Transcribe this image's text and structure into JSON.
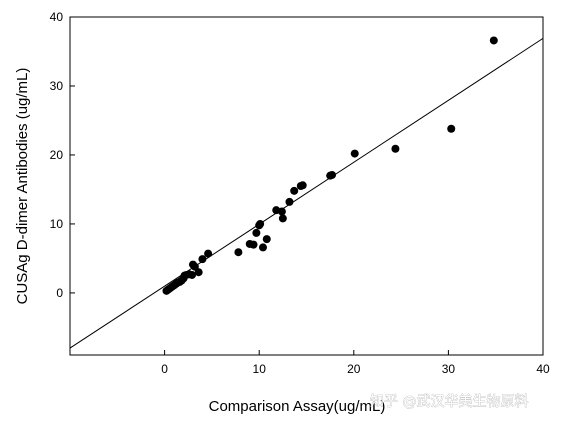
{
  "chart_data": {
    "type": "scatter",
    "title": "",
    "xlabel": "Comparison Assay(ug/mL)",
    "ylabel": "CUSAg D-dimer Antibodies (ug/mL)",
    "xlim": [
      -10,
      40
    ],
    "ylim": [
      -9,
      40
    ],
    "x_ticks": [
      0,
      10,
      20,
      30,
      40
    ],
    "y_ticks": [
      0,
      10,
      20,
      30,
      40
    ],
    "grid": false,
    "legend": "none",
    "marker_color": "#000000",
    "series": [
      {
        "points": [
          [
            0.2,
            0.3
          ],
          [
            0.4,
            0.5
          ],
          [
            0.6,
            0.7
          ],
          [
            0.8,
            0.9
          ],
          [
            1.0,
            1.1
          ],
          [
            1.2,
            1.3
          ],
          [
            1.4,
            1.5
          ],
          [
            1.6,
            1.6
          ],
          [
            1.8,
            1.8
          ],
          [
            2.0,
            2.1
          ],
          [
            2.1,
            2.5
          ],
          [
            2.3,
            2.6
          ],
          [
            2.6,
            2.7
          ],
          [
            2.9,
            2.6
          ],
          [
            3.0,
            4.1
          ],
          [
            3.2,
            3.8
          ],
          [
            3.6,
            3.0
          ],
          [
            4.0,
            4.9
          ],
          [
            4.6,
            5.7
          ],
          [
            7.8,
            5.9
          ],
          [
            9.0,
            7.1
          ],
          [
            9.4,
            7.0
          ],
          [
            9.7,
            8.7
          ],
          [
            10.0,
            9.8
          ],
          [
            10.1,
            10.0
          ],
          [
            10.4,
            6.6
          ],
          [
            10.8,
            7.8
          ],
          [
            11.8,
            12.0
          ],
          [
            12.4,
            11.8
          ],
          [
            12.5,
            10.8
          ],
          [
            13.2,
            13.2
          ],
          [
            13.7,
            14.8
          ],
          [
            14.4,
            15.5
          ],
          [
            14.6,
            15.6
          ],
          [
            17.5,
            17.0
          ],
          [
            17.7,
            17.1
          ],
          [
            20.1,
            20.2
          ],
          [
            24.4,
            20.9
          ],
          [
            30.3,
            23.8
          ],
          [
            34.8,
            36.6
          ]
        ]
      }
    ],
    "fit_line": {
      "x": [
        -10,
        40
      ],
      "y": [
        -8.0,
        36.9
      ]
    }
  },
  "watermark": {
    "text": "知乎 @武汉华美生物原料"
  }
}
